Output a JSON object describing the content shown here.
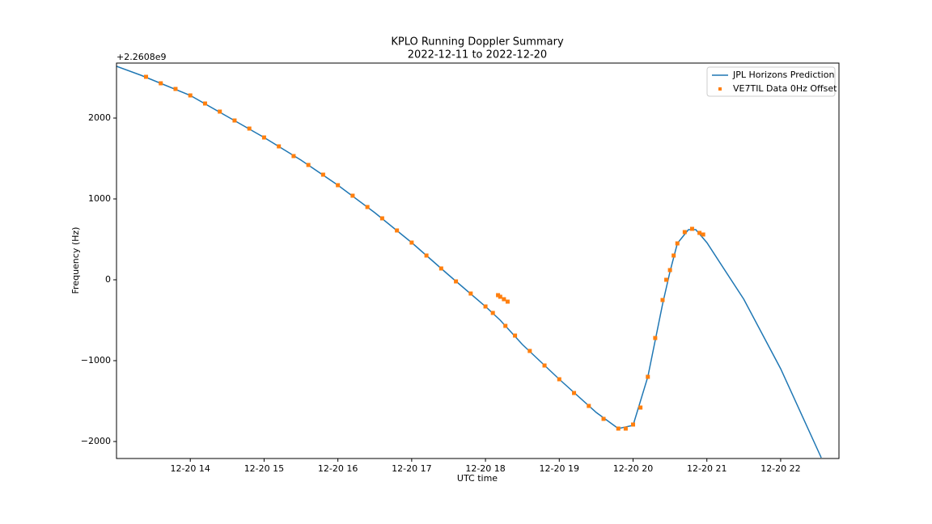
{
  "chart_data": {
    "type": "line",
    "title": "KPLO Running Doppler Summary",
    "subtitle": "2022-12-11 to 2022-12-20",
    "x_label": "UTC time",
    "y_label": "Frequency (Hz)",
    "y_offset_label": "+2.2608e9",
    "xlim": [
      13.0,
      22.79
    ],
    "ylim": [
      -2210,
      2680
    ],
    "xticks": [
      {
        "value": 14,
        "label": "12-20 14"
      },
      {
        "value": 15,
        "label": "12-20 15"
      },
      {
        "value": 16,
        "label": "12-20 16"
      },
      {
        "value": 17,
        "label": "12-20 17"
      },
      {
        "value": 18,
        "label": "12-20 18"
      },
      {
        "value": 19,
        "label": "12-20 19"
      },
      {
        "value": 20,
        "label": "12-20 20"
      },
      {
        "value": 21,
        "label": "12-20 21"
      },
      {
        "value": 22,
        "label": "12-20 22"
      }
    ],
    "yticks": [
      {
        "value": -2000,
        "label": "−2000"
      },
      {
        "value": -1000,
        "label": "−1000"
      },
      0,
      1000,
      2000
    ],
    "legend": "upper right",
    "series": [
      {
        "name": "JPL Horizons Prediction",
        "color": "#1f77b4",
        "kind": "line",
        "x": [
          13.0,
          13.33,
          14.0,
          14.5,
          15.0,
          15.5,
          16.0,
          16.5,
          17.0,
          17.5,
          18.0,
          18.2,
          18.5,
          19.0,
          19.5,
          19.8,
          20.0,
          20.2,
          20.4,
          20.5,
          20.6,
          20.75,
          20.85,
          21.0,
          21.5,
          22.0,
          22.55
        ],
        "values": [
          2640,
          2530,
          2280,
          2020,
          1760,
          1480,
          1170,
          830,
          460,
          60,
          -330,
          -500,
          -800,
          -1230,
          -1640,
          -1840,
          -1800,
          -1200,
          -300,
          100,
          450,
          620,
          620,
          460,
          -240,
          -1100,
          -2200
        ]
      },
      {
        "name": "VE7TIL Data 0Hz Offset",
        "color": "#ff7f0e",
        "kind": "scatter",
        "x": [
          13.4,
          13.6,
          13.8,
          14.0,
          14.2,
          14.4,
          14.6,
          14.8,
          15.0,
          15.2,
          15.4,
          15.6,
          15.8,
          16.0,
          16.2,
          16.4,
          16.6,
          16.8,
          17.0,
          17.2,
          17.4,
          17.6,
          17.8,
          18.0,
          18.1,
          18.17,
          18.2,
          18.25,
          18.3,
          18.27,
          18.4,
          18.6,
          18.8,
          19.0,
          19.2,
          19.4,
          19.6,
          19.8,
          19.9,
          20.0,
          20.1,
          20.2,
          20.3,
          20.4,
          20.45,
          20.5,
          20.55,
          20.6,
          20.7,
          20.8,
          20.9,
          20.95
        ],
        "values": [
          2510,
          2430,
          2360,
          2280,
          2180,
          2080,
          1970,
          1870,
          1760,
          1650,
          1530,
          1420,
          1300,
          1170,
          1040,
          900,
          760,
          610,
          460,
          300,
          140,
          -20,
          -170,
          -330,
          -410,
          -190,
          -210,
          -240,
          -270,
          -570,
          -690,
          -880,
          -1060,
          -1230,
          -1400,
          -1560,
          -1720,
          -1840,
          -1840,
          -1790,
          -1580,
          -1200,
          -720,
          -250,
          0,
          120,
          300,
          450,
          590,
          630,
          580,
          560
        ]
      }
    ]
  }
}
